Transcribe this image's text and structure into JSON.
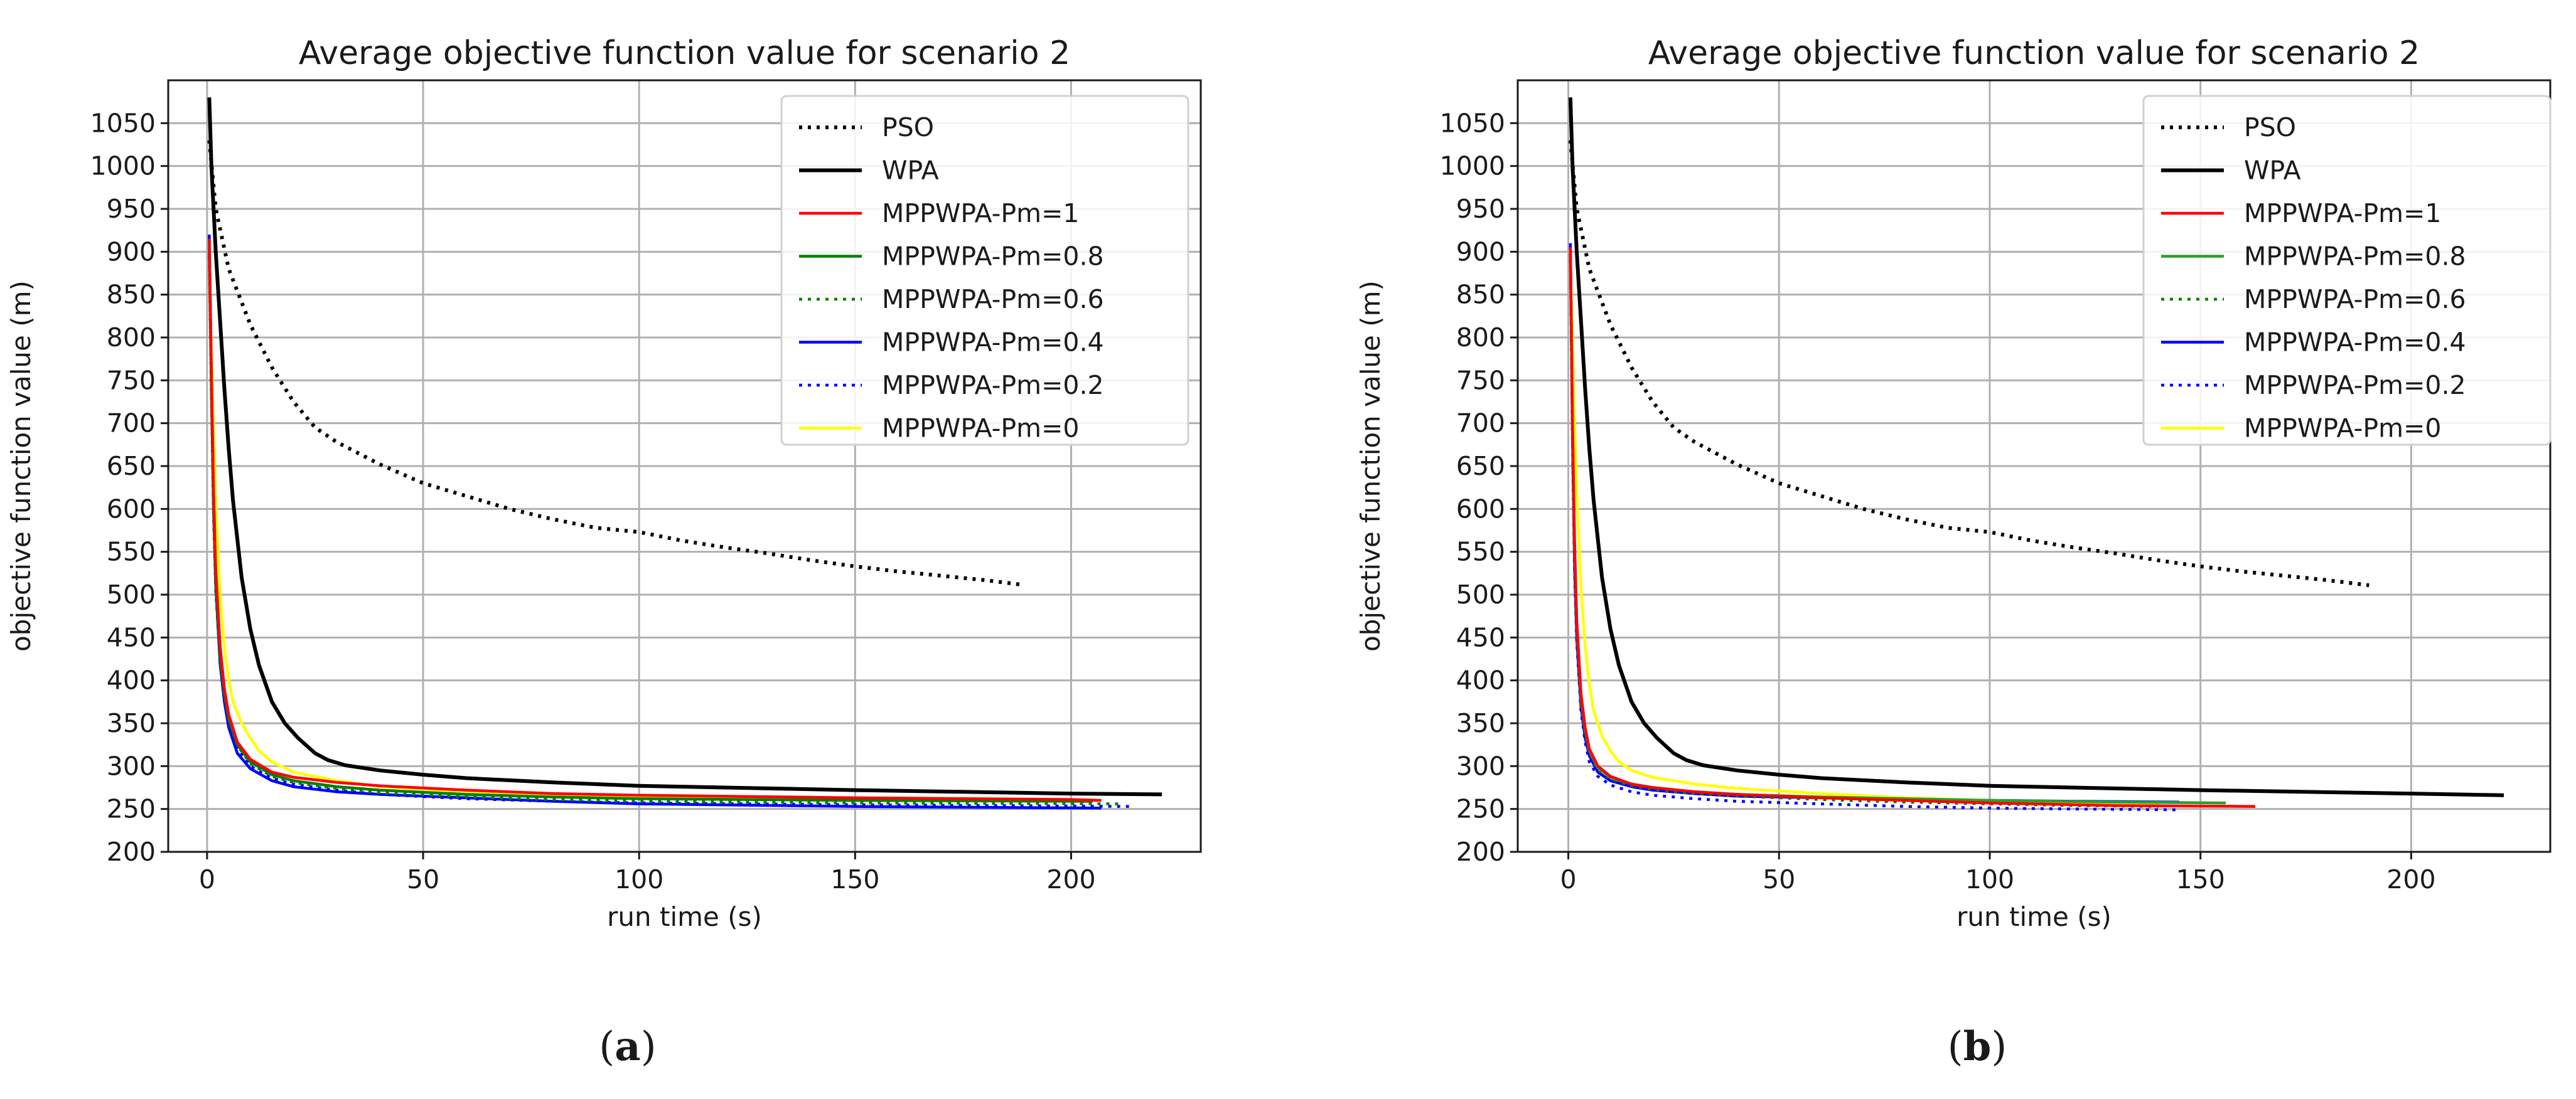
{
  "chart_data": [
    {
      "type": "line",
      "panel": "a",
      "caption": {
        "open": "(",
        "letter": "a",
        "close": ")"
      },
      "title": "Average objective function value for scenario 2",
      "xlabel": "run time (s)",
      "ylabel": "objective function value (m)",
      "xlim": [
        -9,
        230
      ],
      "ylim": [
        200,
        1100
      ],
      "xticks": [
        0,
        50,
        100,
        150,
        200
      ],
      "yticks": [
        200,
        250,
        300,
        350,
        400,
        450,
        500,
        550,
        600,
        650,
        700,
        750,
        800,
        850,
        900,
        950,
        1000,
        1050
      ],
      "grid": true,
      "legend_position": "top-right",
      "series": [
        {
          "name": "PSO",
          "color": "#000000",
          "style": "dotted",
          "width": "thick",
          "x": [
            0.5,
            2,
            5,
            10,
            15,
            20,
            25,
            30,
            40,
            50,
            60,
            70,
            80,
            90,
            100,
            110,
            120,
            130,
            140,
            150,
            160,
            170,
            180,
            188
          ],
          "y": [
            1030,
            950,
            880,
            815,
            765,
            725,
            695,
            678,
            652,
            630,
            615,
            600,
            588,
            578,
            573,
            563,
            555,
            548,
            540,
            533,
            527,
            522,
            517,
            512
          ]
        },
        {
          "name": "WPA",
          "color": "#000000",
          "style": "solid",
          "width": "thick",
          "x": [
            0.5,
            1,
            2,
            3,
            4,
            5,
            6,
            8,
            10,
            12,
            15,
            18,
            21,
            25,
            28,
            32,
            40,
            50,
            60,
            80,
            100,
            150,
            200,
            221
          ],
          "y": [
            1080,
            1000,
            900,
            820,
            740,
            670,
            610,
            520,
            460,
            418,
            375,
            350,
            333,
            315,
            307,
            301,
            295,
            290,
            286,
            281,
            277,
            272,
            268,
            267
          ]
        },
        {
          "name": "MPPWPA-Pm=1",
          "color": "#ff0000",
          "style": "solid",
          "width": "thin",
          "x": [
            0.5,
            1,
            1.5,
            2,
            3,
            4,
            5,
            7,
            10,
            15,
            20,
            30,
            40,
            60,
            80,
            100,
            150,
            200,
            207
          ],
          "y": [
            915,
            760,
            620,
            530,
            440,
            390,
            360,
            328,
            308,
            293,
            287,
            281,
            277,
            272,
            268,
            266,
            263,
            261,
            260
          ]
        },
        {
          "name": "MPPWPA-Pm=0.8",
          "color": "#008000",
          "style": "solid",
          "width": "thin",
          "x": [
            0.5,
            1,
            1.5,
            2,
            3,
            4,
            5,
            7,
            10,
            15,
            20,
            30,
            40,
            60,
            80,
            100,
            150,
            205
          ],
          "y": [
            905,
            740,
            600,
            515,
            430,
            385,
            355,
            325,
            305,
            290,
            283,
            276,
            272,
            267,
            264,
            262,
            260,
            259
          ]
        },
        {
          "name": "MPPWPA-Pm=0.6",
          "color": "#008000",
          "style": "dotted",
          "width": "thin",
          "x": [
            0.5,
            1,
            1.5,
            2,
            3,
            4,
            5,
            7,
            10,
            15,
            20,
            30,
            40,
            60,
            80,
            100,
            150,
            212
          ],
          "y": [
            900,
            735,
            595,
            510,
            428,
            383,
            354,
            324,
            303,
            288,
            281,
            274,
            269,
            264,
            261,
            259,
            257,
            256
          ]
        },
        {
          "name": "MPPWPA-Pm=0.4",
          "color": "#0000ff",
          "style": "solid",
          "width": "thin",
          "x": [
            0.5,
            1,
            1.5,
            2,
            3,
            4,
            5,
            7,
            10,
            15,
            20,
            30,
            40,
            60,
            80,
            100,
            150,
            207
          ],
          "y": [
            920,
            750,
            600,
            510,
            420,
            375,
            345,
            315,
            297,
            283,
            276,
            270,
            267,
            263,
            259,
            256,
            253,
            251
          ]
        },
        {
          "name": "MPPWPA-Pm=0.2",
          "color": "#0000ff",
          "style": "dotted",
          "width": "thin",
          "x": [
            0.5,
            1,
            1.5,
            2,
            3,
            4,
            5,
            7,
            10,
            15,
            20,
            30,
            40,
            60,
            80,
            100,
            150,
            214
          ],
          "y": [
            895,
            730,
            590,
            505,
            425,
            380,
            350,
            320,
            300,
            286,
            279,
            272,
            267,
            262,
            259,
            257,
            255,
            253
          ]
        },
        {
          "name": "MPPWPA-Pm=0",
          "color": "#ffff00",
          "style": "solid",
          "width": "thin",
          "x": [
            0.5,
            1,
            1.5,
            2,
            3,
            4,
            5,
            6,
            8,
            10,
            12,
            15,
            20,
            30,
            40,
            60,
            80,
            100,
            150,
            205
          ],
          "y": [
            875,
            780,
            690,
            610,
            500,
            440,
            400,
            375,
            350,
            333,
            318,
            305,
            293,
            283,
            276,
            270,
            267,
            264,
            262,
            260
          ]
        }
      ]
    },
    {
      "type": "line",
      "panel": "b",
      "caption": {
        "open": "(",
        "letter": "b",
        "close": ")"
      },
      "title": "Average objective function value for scenario 2",
      "xlabel": "run time (s)",
      "ylabel": "objective function value (m)",
      "xlim": [
        -12,
        233
      ],
      "ylim": [
        200,
        1100
      ],
      "xticks": [
        0,
        50,
        100,
        150,
        200
      ],
      "yticks": [
        200,
        250,
        300,
        350,
        400,
        450,
        500,
        550,
        600,
        650,
        700,
        750,
        800,
        850,
        900,
        950,
        1000,
        1050
      ],
      "grid": true,
      "legend_position": "top-right",
      "series": [
        {
          "name": "PSO",
          "color": "#000000",
          "style": "dotted",
          "width": "thick",
          "x": [
            0.5,
            2,
            5,
            10,
            15,
            20,
            25,
            30,
            40,
            50,
            60,
            70,
            80,
            90,
            100,
            110,
            120,
            130,
            140,
            150,
            160,
            170,
            180,
            190
          ],
          "y": [
            1030,
            950,
            880,
            815,
            765,
            725,
            695,
            678,
            652,
            630,
            615,
            600,
            588,
            578,
            573,
            563,
            555,
            548,
            540,
            533,
            527,
            522,
            517,
            511
          ]
        },
        {
          "name": "WPA",
          "color": "#000000",
          "style": "solid",
          "width": "thick",
          "x": [
            0.5,
            1,
            2,
            3,
            4,
            5,
            6,
            8,
            10,
            12,
            15,
            18,
            21,
            25,
            28,
            32,
            40,
            50,
            60,
            80,
            100,
            150,
            200,
            222
          ],
          "y": [
            1080,
            1000,
            900,
            820,
            740,
            670,
            610,
            520,
            460,
            418,
            375,
            350,
            333,
            315,
            307,
            301,
            295,
            290,
            286,
            281,
            277,
            272,
            268,
            266
          ]
        },
        {
          "name": "MPPWPA-Pm=1",
          "color": "#ff0000",
          "style": "solid",
          "width": "thin",
          "x": [
            0.5,
            1,
            1.5,
            2,
            3,
            4,
            5,
            7,
            10,
            15,
            20,
            30,
            40,
            60,
            80,
            100,
            130,
            163
          ],
          "y": [
            905,
            700,
            560,
            470,
            385,
            345,
            320,
            300,
            288,
            279,
            275,
            270,
            267,
            263,
            260,
            257,
            254,
            253
          ]
        },
        {
          "name": "MPPWPA-Pm=0.8",
          "color": "#2ca02c",
          "style": "solid",
          "width": "thin",
          "x": [
            0.5,
            1,
            1.5,
            2,
            3,
            4,
            5,
            7,
            10,
            15,
            20,
            30,
            40,
            60,
            80,
            100,
            130,
            156
          ],
          "y": [
            900,
            690,
            550,
            465,
            380,
            342,
            318,
            298,
            287,
            279,
            275,
            270,
            267,
            264,
            262,
            260,
            258,
            257
          ]
        },
        {
          "name": "MPPWPA-Pm=0.6",
          "color": "#008000",
          "style": "dotted",
          "width": "thin",
          "x": [
            0.5,
            1,
            1.5,
            2,
            3,
            4,
            5,
            7,
            10,
            15,
            20,
            30,
            40,
            60,
            80,
            100,
            120,
            140
          ],
          "y": [
            895,
            685,
            545,
            460,
            378,
            340,
            316,
            296,
            285,
            277,
            273,
            268,
            265,
            261,
            258,
            256,
            254,
            253
          ]
        },
        {
          "name": "MPPWPA-Pm=0.4",
          "color": "#0000ff",
          "style": "solid",
          "width": "thin",
          "x": [
            0.5,
            1,
            1.5,
            2,
            3,
            4,
            5,
            7,
            10,
            15,
            20,
            30,
            40,
            60,
            80,
            100,
            120,
            145
          ],
          "y": [
            910,
            680,
            530,
            450,
            370,
            333,
            312,
            293,
            283,
            276,
            272,
            268,
            265,
            263,
            261,
            260,
            259,
            258
          ]
        },
        {
          "name": "MPPWPA-Pm=0.2",
          "color": "#0000ff",
          "style": "dotted",
          "width": "thin",
          "x": [
            0.5,
            1,
            1.5,
            2,
            3,
            4,
            5,
            7,
            10,
            15,
            20,
            30,
            40,
            60,
            80,
            100,
            120,
            145
          ],
          "y": [
            890,
            670,
            525,
            445,
            365,
            328,
            305,
            288,
            278,
            270,
            266,
            262,
            259,
            256,
            253,
            251,
            250,
            249
          ]
        },
        {
          "name": "MPPWPA-Pm=0",
          "color": "#ffff00",
          "style": "solid",
          "width": "thin",
          "x": [
            0.5,
            1,
            1.5,
            2,
            3,
            4,
            5,
            6,
            8,
            10,
            12,
            15,
            20,
            30,
            40,
            60,
            80,
            100,
            120,
            140
          ],
          "y": [
            880,
            800,
            700,
            620,
            510,
            440,
            395,
            365,
            335,
            318,
            305,
            295,
            287,
            279,
            274,
            268,
            263,
            260,
            258,
            257
          ]
        }
      ]
    }
  ]
}
